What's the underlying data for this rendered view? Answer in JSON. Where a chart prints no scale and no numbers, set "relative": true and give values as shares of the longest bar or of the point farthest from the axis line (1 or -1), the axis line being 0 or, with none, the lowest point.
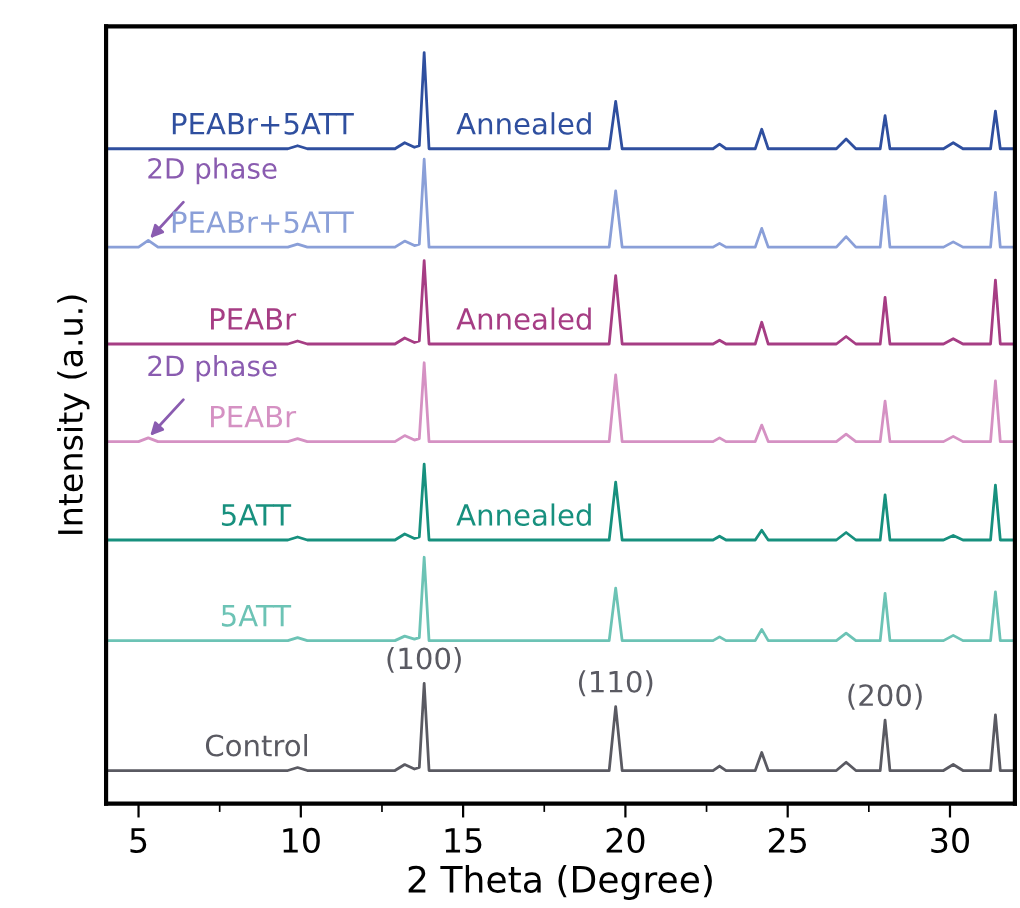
{
  "chart_data": {
    "type": "line",
    "relative": true,
    "xlabel": "2 Theta (Degree)",
    "ylabel": "Intensity (a.u.)",
    "tick_labels": "x",
    "xlim": [
      4,
      32
    ],
    "xticks": [
      5,
      {
        "value": 7.5,
        "label": null
      },
      10,
      {
        "value": 12.5,
        "label": null
      },
      15,
      {
        "value": 17.5,
        "label": null
      },
      20,
      {
        "value": 22.5,
        "label": null
      },
      25,
      {
        "value": 27.5,
        "label": null
      },
      30
    ],
    "x": [
      4,
      5,
      5.3,
      5.6,
      9.6,
      9.9,
      10.2,
      12.9,
      13.2,
      13.5,
      13.65,
      13.8,
      13.95,
      19.5,
      19.7,
      19.9,
      22.7,
      22.9,
      23.1,
      24.0,
      24.2,
      24.4,
      26.5,
      26.8,
      27.1,
      27.85,
      28.0,
      28.15,
      29.8,
      30.1,
      30.4,
      31.25,
      31.4,
      31.55,
      32
    ],
    "series": [
      {
        "color": "#5a5a62",
        "values": [
          0.044,
          0.044,
          0.044,
          0.044,
          0.044,
          0.048,
          0.044,
          0.044,
          0.052,
          0.046,
          0.048,
          0.16,
          0.044,
          0.044,
          0.129,
          0.044,
          0.044,
          0.05,
          0.044,
          0.044,
          0.068,
          0.044,
          0.044,
          0.055,
          0.044,
          0.044,
          0.111,
          0.044,
          0.044,
          0.052,
          0.044,
          0.044,
          0.118,
          0.044,
          0.044
        ]
      },
      {
        "color": "#6cc3b5",
        "values": [
          0.217,
          0.217,
          0.217,
          0.217,
          0.217,
          0.221,
          0.217,
          0.217,
          0.223,
          0.219,
          0.221,
          0.328,
          0.217,
          0.217,
          0.287,
          0.217,
          0.217,
          0.222,
          0.217,
          0.217,
          0.232,
          0.217,
          0.217,
          0.227,
          0.217,
          0.217,
          0.28,
          0.217,
          0.217,
          0.224,
          0.217,
          0.217,
          0.282,
          0.217,
          0.217
        ]
      },
      {
        "color": "#17907e",
        "values": [
          0.351,
          0.351,
          0.351,
          0.351,
          0.351,
          0.355,
          0.351,
          0.351,
          0.359,
          0.353,
          0.355,
          0.452,
          0.351,
          0.351,
          0.428,
          0.351,
          0.351,
          0.356,
          0.351,
          0.351,
          0.364,
          0.351,
          0.351,
          0.361,
          0.351,
          0.351,
          0.411,
          0.351,
          0.351,
          0.357,
          0.351,
          0.351,
          0.424,
          0.351,
          0.351
        ]
      },
      {
        "color": "#d591c3",
        "values": [
          0.482,
          0.482,
          0.487,
          0.482,
          0.482,
          0.486,
          0.482,
          0.482,
          0.49,
          0.484,
          0.486,
          0.587,
          0.482,
          0.482,
          0.571,
          0.482,
          0.482,
          0.487,
          0.482,
          0.482,
          0.504,
          0.482,
          0.482,
          0.492,
          0.482,
          0.482,
          0.536,
          0.482,
          0.482,
          0.489,
          0.482,
          0.482,
          0.563,
          0.482,
          0.482
        ]
      },
      {
        "color": "#a63d84",
        "values": [
          0.612,
          0.612,
          0.612,
          0.612,
          0.612,
          0.616,
          0.612,
          0.612,
          0.62,
          0.614,
          0.616,
          0.723,
          0.612,
          0.612,
          0.703,
          0.612,
          0.612,
          0.617,
          0.612,
          0.612,
          0.641,
          0.612,
          0.612,
          0.622,
          0.612,
          0.612,
          0.674,
          0.612,
          0.612,
          0.619,
          0.612,
          0.612,
          0.697,
          0.612,
          0.612
        ]
      },
      {
        "color": "#8a9fd8",
        "values": [
          0.741,
          0.741,
          0.75,
          0.741,
          0.741,
          0.745,
          0.741,
          0.741,
          0.749,
          0.743,
          0.745,
          0.858,
          0.741,
          0.741,
          0.816,
          0.741,
          0.741,
          0.746,
          0.741,
          0.741,
          0.766,
          0.741,
          0.741,
          0.755,
          0.741,
          0.741,
          0.809,
          0.741,
          0.741,
          0.748,
          0.741,
          0.741,
          0.814,
          0.741,
          0.741
        ]
      },
      {
        "color": "#2f4f9f",
        "values": [
          0.872,
          0.872,
          0.872,
          0.872,
          0.872,
          0.876,
          0.872,
          0.872,
          0.88,
          0.874,
          0.876,
          1,
          0.872,
          0.872,
          0.935,
          0.872,
          0.872,
          0.878,
          0.872,
          0.872,
          0.898,
          0.872,
          0.872,
          0.885,
          0.872,
          0.872,
          0.916,
          0.872,
          0.872,
          0.88,
          0.872,
          0.872,
          0.922,
          0.872,
          0.872
        ]
      }
    ],
    "annotations": [
      {
        "text": "PEABr+5ATT",
        "x": 8.8,
        "y": 0.872
      },
      {
        "text": "Annealed",
        "x": 16.9,
        "y": 0.872
      },
      {
        "text": "2D phase",
        "x": 5.3,
        "y": 0.75
      },
      {
        "text": "PEABr+5ATT",
        "x": 8.8,
        "y": 0.741
      },
      {
        "text": "PEABr",
        "x": 8.5,
        "y": 0.612
      },
      {
        "text": "Annealed",
        "x": 16.9,
        "y": 0.612
      },
      {
        "text": "2D phase",
        "x": 5.3,
        "y": 0.487
      },
      {
        "text": "PEABr",
        "x": 8.5,
        "y": 0.482
      },
      {
        "text": "5ATT",
        "x": 8.6,
        "y": 0.351
      },
      {
        "text": "Annealed",
        "x": 16.9,
        "y": 0.351
      },
      {
        "text": "5ATT",
        "x": 8.6,
        "y": 0.217
      },
      {
        "text": "Control",
        "x": 8.65,
        "y": 0.044
      },
      {
        "text": "(100)",
        "x": 13.8,
        "y": 0.16
      },
      {
        "text": "(110)",
        "x": 19.7,
        "y": 0.129
      },
      {
        "text": "(200)",
        "x": 28.0,
        "y": 0.111
      }
    ]
  }
}
